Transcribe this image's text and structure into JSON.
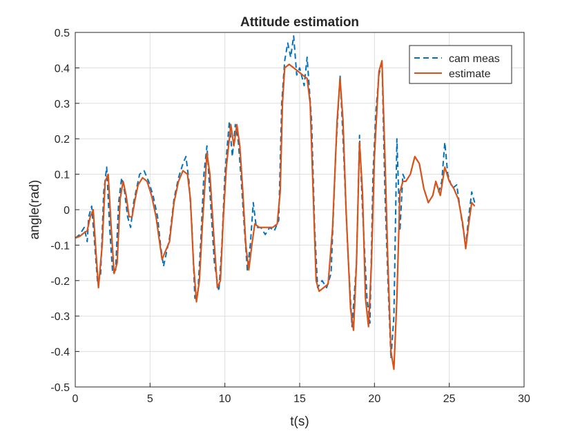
{
  "chart_data": {
    "type": "line",
    "title": "Attitude estimation",
    "xlabel": "t(s)",
    "ylabel": "angle(rad)",
    "xlim": [
      0,
      30
    ],
    "ylim": [
      -0.5,
      0.5
    ],
    "xticks": [
      0,
      5,
      10,
      15,
      20,
      25,
      30
    ],
    "yticks": [
      -0.5,
      -0.4,
      -0.3,
      -0.2,
      -0.1,
      0,
      0.1,
      0.2,
      0.3,
      0.4,
      0.5
    ],
    "xtick_labels": [
      "0",
      "5",
      "10",
      "15",
      "20",
      "25",
      "30"
    ],
    "ytick_labels": [
      "-0.5",
      "-0.4",
      "-0.3",
      "-0.2",
      "-0.1",
      "0",
      "0.1",
      "0.2",
      "0.3",
      "0.4",
      "0.5"
    ],
    "grid": true,
    "legend_position": "top-right",
    "series": [
      {
        "name": "cam meas",
        "style": "dashed",
        "color": "#0072BD",
        "points": [
          [
            0,
            -0.08
          ],
          [
            0.3,
            -0.07
          ],
          [
            0.6,
            -0.05
          ],
          [
            0.8,
            -0.09
          ],
          [
            0.9,
            -0.02
          ],
          [
            1.1,
            0.01
          ],
          [
            1.3,
            -0.1
          ],
          [
            1.5,
            -0.21
          ],
          [
            1.7,
            -0.18
          ],
          [
            1.9,
            0.05
          ],
          [
            2.1,
            0.12
          ],
          [
            2.3,
            -0.05
          ],
          [
            2.5,
            -0.18
          ],
          [
            2.7,
            -0.17
          ],
          [
            2.9,
            0.02
          ],
          [
            3.1,
            0.09
          ],
          [
            3.3,
            0.05
          ],
          [
            3.5,
            -0.02
          ],
          [
            3.7,
            -0.05
          ],
          [
            3.9,
            0.02
          ],
          [
            4.1,
            0.06
          ],
          [
            4.3,
            0.1
          ],
          [
            4.6,
            0.11
          ],
          [
            4.9,
            0.08
          ],
          [
            5.2,
            0.04
          ],
          [
            5.5,
            -0.02
          ],
          [
            5.7,
            -0.1
          ],
          [
            5.9,
            -0.16
          ],
          [
            6.1,
            -0.12
          ],
          [
            6.3,
            -0.08
          ],
          [
            6.6,
            0.03
          ],
          [
            6.9,
            0.09
          ],
          [
            7.2,
            0.13
          ],
          [
            7.4,
            0.15
          ],
          [
            7.6,
            0.08
          ],
          [
            7.8,
            -0.05
          ],
          [
            8.0,
            -0.25
          ],
          [
            8.2,
            -0.23
          ],
          [
            8.4,
            -0.08
          ],
          [
            8.6,
            0.1
          ],
          [
            8.8,
            0.18
          ],
          [
            9.0,
            0.05
          ],
          [
            9.3,
            -0.15
          ],
          [
            9.6,
            -0.23
          ],
          [
            9.8,
            -0.1
          ],
          [
            10.0,
            0.1
          ],
          [
            10.3,
            0.25
          ],
          [
            10.5,
            0.15
          ],
          [
            10.7,
            0.24
          ],
          [
            10.9,
            0.19
          ],
          [
            11.1,
            0.08
          ],
          [
            11.3,
            -0.05
          ],
          [
            11.5,
            -0.17
          ],
          [
            11.7,
            -0.1
          ],
          [
            11.9,
            0.02
          ],
          [
            12.1,
            -0.05
          ],
          [
            12.4,
            -0.05
          ],
          [
            12.7,
            -0.07
          ],
          [
            13.0,
            -0.05
          ],
          [
            13.3,
            -0.06
          ],
          [
            13.6,
            -0.03
          ],
          [
            13.8,
            0.3
          ],
          [
            14.0,
            0.42
          ],
          [
            14.2,
            0.47
          ],
          [
            14.4,
            0.43
          ],
          [
            14.6,
            0.49
          ],
          [
            14.8,
            0.38
          ],
          [
            15.0,
            0.4
          ],
          [
            15.3,
            0.35
          ],
          [
            15.5,
            0.43
          ],
          [
            15.8,
            0.25
          ],
          [
            16.0,
            -0.05
          ],
          [
            16.2,
            -0.22
          ],
          [
            16.5,
            -0.2
          ],
          [
            16.8,
            -0.22
          ],
          [
            17.1,
            -0.18
          ],
          [
            17.4,
            0.15
          ],
          [
            17.7,
            0.38
          ],
          [
            17.9,
            0.2
          ],
          [
            18.2,
            -0.1
          ],
          [
            18.5,
            -0.33
          ],
          [
            18.8,
            -0.15
          ],
          [
            19.0,
            0.21
          ],
          [
            19.2,
            0.0
          ],
          [
            19.5,
            -0.25
          ],
          [
            19.7,
            -0.32
          ],
          [
            19.9,
            0.1
          ],
          [
            20.1,
            0.28
          ],
          [
            20.3,
            0.38
          ],
          [
            20.5,
            0.42
          ],
          [
            20.7,
            0.05
          ],
          [
            20.9,
            -0.2
          ],
          [
            21.1,
            -0.42
          ],
          [
            21.3,
            -0.3
          ],
          [
            21.5,
            0.2
          ],
          [
            21.7,
            -0.06
          ],
          [
            21.9,
            0.1
          ],
          [
            22.1,
            0.08
          ],
          [
            22.4,
            0.1
          ],
          [
            22.7,
            0.15
          ],
          [
            23.0,
            0.13
          ],
          [
            23.3,
            0.06
          ],
          [
            23.6,
            0.02
          ],
          [
            23.9,
            0.04
          ],
          [
            24.1,
            0.08
          ],
          [
            24.3,
            0.05
          ],
          [
            24.5,
            0.08
          ],
          [
            24.7,
            0.19
          ],
          [
            24.9,
            0.1
          ],
          [
            25.2,
            0.06
          ],
          [
            25.5,
            0.07
          ],
          [
            25.8,
            -0.02
          ],
          [
            26.1,
            -0.1
          ],
          [
            26.3,
            -0.02
          ],
          [
            26.5,
            0.05
          ],
          [
            26.7,
            0.02
          ]
        ]
      },
      {
        "name": "estimate",
        "style": "solid",
        "color": "#D95319",
        "points": [
          [
            0,
            -0.08
          ],
          [
            0.3,
            -0.075
          ],
          [
            0.6,
            -0.065
          ],
          [
            0.8,
            -0.06
          ],
          [
            1.0,
            -0.02
          ],
          [
            1.2,
            0.0
          ],
          [
            1.35,
            -0.1
          ],
          [
            1.55,
            -0.22
          ],
          [
            1.8,
            -0.1
          ],
          [
            2.0,
            0.08
          ],
          [
            2.2,
            0.1
          ],
          [
            2.4,
            -0.05
          ],
          [
            2.6,
            -0.18
          ],
          [
            2.8,
            -0.15
          ],
          [
            3.0,
            0.03
          ],
          [
            3.2,
            0.08
          ],
          [
            3.4,
            0.04
          ],
          [
            3.6,
            -0.02
          ],
          [
            3.8,
            -0.02
          ],
          [
            4.0,
            0.03
          ],
          [
            4.2,
            0.07
          ],
          [
            4.5,
            0.09
          ],
          [
            4.8,
            0.08
          ],
          [
            5.1,
            0.04
          ],
          [
            5.4,
            -0.02
          ],
          [
            5.6,
            -0.08
          ],
          [
            5.8,
            -0.14
          ],
          [
            6.0,
            -0.12
          ],
          [
            6.3,
            -0.09
          ],
          [
            6.6,
            0.02
          ],
          [
            6.9,
            0.08
          ],
          [
            7.2,
            0.11
          ],
          [
            7.5,
            0.1
          ],
          [
            7.7,
            0.03
          ],
          [
            7.9,
            -0.15
          ],
          [
            8.1,
            -0.26
          ],
          [
            8.3,
            -0.2
          ],
          [
            8.5,
            -0.04
          ],
          [
            8.8,
            0.16
          ],
          [
            9.0,
            0.1
          ],
          [
            9.3,
            -0.1
          ],
          [
            9.5,
            -0.22
          ],
          [
            9.7,
            -0.2
          ],
          [
            9.9,
            -0.02
          ],
          [
            10.1,
            0.12
          ],
          [
            10.4,
            0.24
          ],
          [
            10.6,
            0.18
          ],
          [
            10.8,
            0.24
          ],
          [
            11.0,
            0.18
          ],
          [
            11.2,
            0.05
          ],
          [
            11.4,
            -0.1
          ],
          [
            11.6,
            -0.17
          ],
          [
            11.8,
            -0.1
          ],
          [
            12.0,
            -0.04
          ],
          [
            12.3,
            -0.05
          ],
          [
            12.6,
            -0.05
          ],
          [
            12.9,
            -0.05
          ],
          [
            13.2,
            -0.05
          ],
          [
            13.5,
            -0.04
          ],
          [
            13.7,
            0.05
          ],
          [
            13.85,
            0.3
          ],
          [
            14.0,
            0.4
          ],
          [
            14.3,
            0.41
          ],
          [
            14.6,
            0.4
          ],
          [
            14.9,
            0.39
          ],
          [
            15.2,
            0.38
          ],
          [
            15.5,
            0.37
          ],
          [
            15.7,
            0.3
          ],
          [
            15.9,
            0.05
          ],
          [
            16.1,
            -0.2
          ],
          [
            16.3,
            -0.23
          ],
          [
            16.6,
            -0.22
          ],
          [
            16.9,
            -0.21
          ],
          [
            17.2,
            -0.05
          ],
          [
            17.5,
            0.25
          ],
          [
            17.7,
            0.37
          ],
          [
            17.9,
            0.25
          ],
          [
            18.1,
            0.0
          ],
          [
            18.4,
            -0.28
          ],
          [
            18.6,
            -0.34
          ],
          [
            18.8,
            -0.15
          ],
          [
            19.0,
            0.19
          ],
          [
            19.2,
            0.05
          ],
          [
            19.4,
            -0.25
          ],
          [
            19.6,
            -0.33
          ],
          [
            19.8,
            -0.15
          ],
          [
            20.0,
            0.15
          ],
          [
            20.3,
            0.39
          ],
          [
            20.5,
            0.42
          ],
          [
            20.7,
            0.15
          ],
          [
            20.9,
            -0.15
          ],
          [
            21.1,
            -0.4
          ],
          [
            21.3,
            -0.45
          ],
          [
            21.5,
            -0.25
          ],
          [
            21.7,
            0.05
          ],
          [
            21.9,
            0.08
          ],
          [
            22.1,
            0.08
          ],
          [
            22.4,
            0.1
          ],
          [
            22.7,
            0.15
          ],
          [
            23.0,
            0.13
          ],
          [
            23.3,
            0.06
          ],
          [
            23.6,
            0.02
          ],
          [
            23.9,
            0.04
          ],
          [
            24.1,
            0.08
          ],
          [
            24.4,
            0.04
          ],
          [
            24.7,
            0.12
          ],
          [
            25.0,
            0.08
          ],
          [
            25.3,
            0.06
          ],
          [
            25.6,
            0.03
          ],
          [
            25.9,
            -0.04
          ],
          [
            26.1,
            -0.11
          ],
          [
            26.3,
            -0.04
          ],
          [
            26.5,
            0.02
          ],
          [
            26.7,
            0.01
          ]
        ]
      }
    ]
  }
}
